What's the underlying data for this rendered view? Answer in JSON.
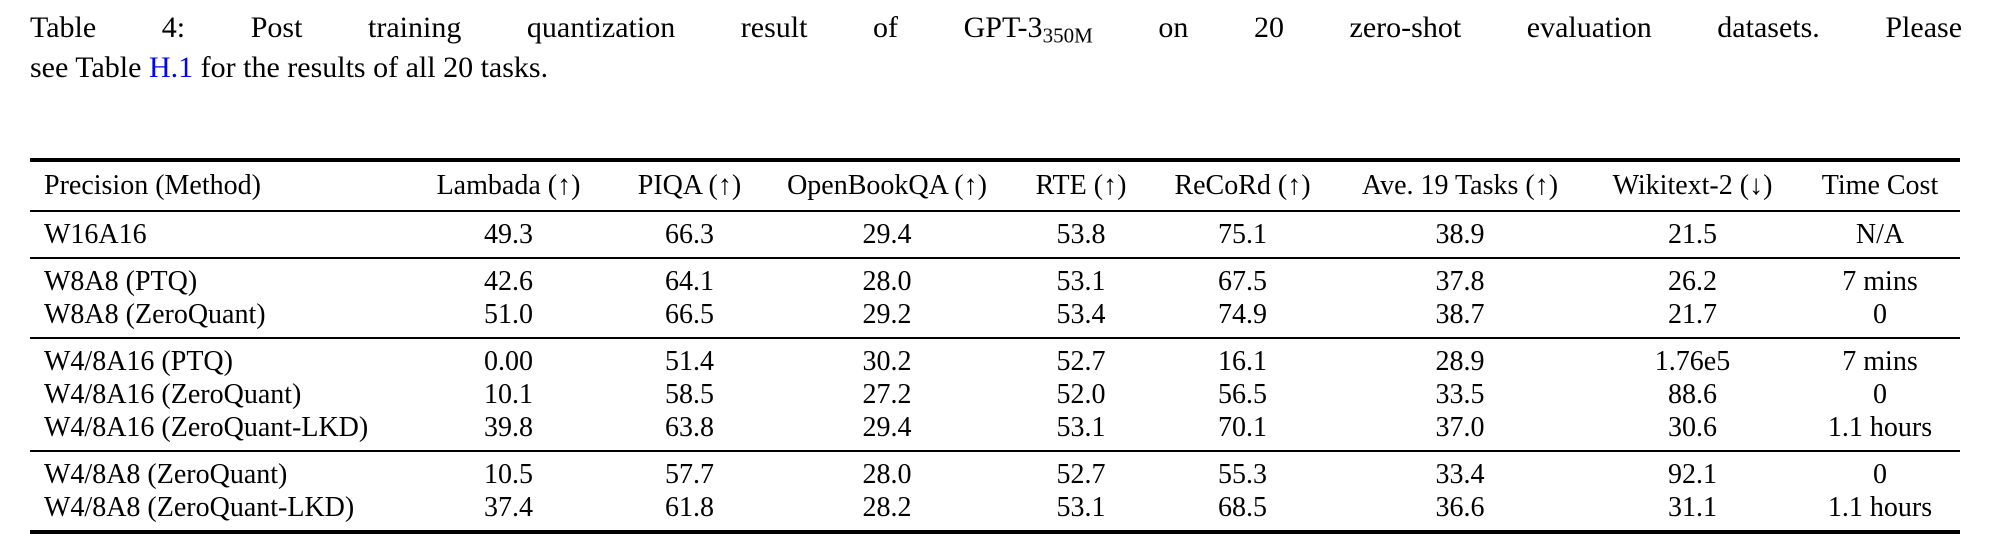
{
  "caption": {
    "line1_part1": "Table 4:  Post training quantization result of GPT-3",
    "line1_subscript": "350M",
    "line1_part2": " on 20 zero-shot evaluation datasets.  Please",
    "line2_part1": "see Table ",
    "line2_link": "H.1",
    "line2_part2": " for the results of all 20 tasks.",
    "link_color": "#0000ff"
  },
  "table": {
    "columns": [
      "Precision (Method)",
      "Lambada (↑)",
      "PIQA (↑)",
      "OpenBookQA (↑)",
      "RTE (↑)",
      "ReCoRd (↑)",
      "Ave. 19 Tasks (↑)",
      "Wikitext-2 (↓)",
      "Time Cost"
    ],
    "groups": [
      {
        "rows": [
          {
            "method": "W16A16",
            "values": [
              "49.3",
              "66.3",
              "29.4",
              "53.8",
              "75.1",
              "38.9",
              "21.5",
              "N/A"
            ]
          }
        ]
      },
      {
        "rows": [
          {
            "method": "W8A8 (PTQ)",
            "values": [
              "42.6",
              "64.1",
              "28.0",
              "53.1",
              "67.5",
              "37.8",
              "26.2",
              "7 mins"
            ]
          },
          {
            "method": "W8A8 (ZeroQuant)",
            "values": [
              "51.0",
              "66.5",
              "29.2",
              "53.4",
              "74.9",
              "38.7",
              "21.7",
              "0"
            ]
          }
        ]
      },
      {
        "rows": [
          {
            "method": "W4/8A16 (PTQ)",
            "values": [
              "0.00",
              "51.4",
              "30.2",
              "52.7",
              "16.1",
              "28.9",
              "1.76e5",
              "7 mins"
            ]
          },
          {
            "method": "W4/8A16 (ZeroQuant)",
            "values": [
              "10.1",
              "58.5",
              "27.2",
              "52.0",
              "56.5",
              "33.5",
              "88.6",
              "0"
            ]
          },
          {
            "method": "W4/8A16 (ZeroQuant-LKD)",
            "values": [
              "39.8",
              "63.8",
              "29.4",
              "53.1",
              "70.1",
              "37.0",
              "30.6",
              "1.1 hours"
            ]
          }
        ]
      },
      {
        "rows": [
          {
            "method": "W4/8A8 (ZeroQuant)",
            "values": [
              "10.5",
              "57.7",
              "28.0",
              "52.7",
              "55.3",
              "33.4",
              "92.1",
              "0"
            ]
          },
          {
            "method": "W4/8A8 (ZeroQuant-LKD)",
            "values": [
              "37.4",
              "61.8",
              "28.2",
              "53.1",
              "68.5",
              "36.6",
              "31.1",
              "1.1 hours"
            ]
          }
        ]
      }
    ]
  }
}
